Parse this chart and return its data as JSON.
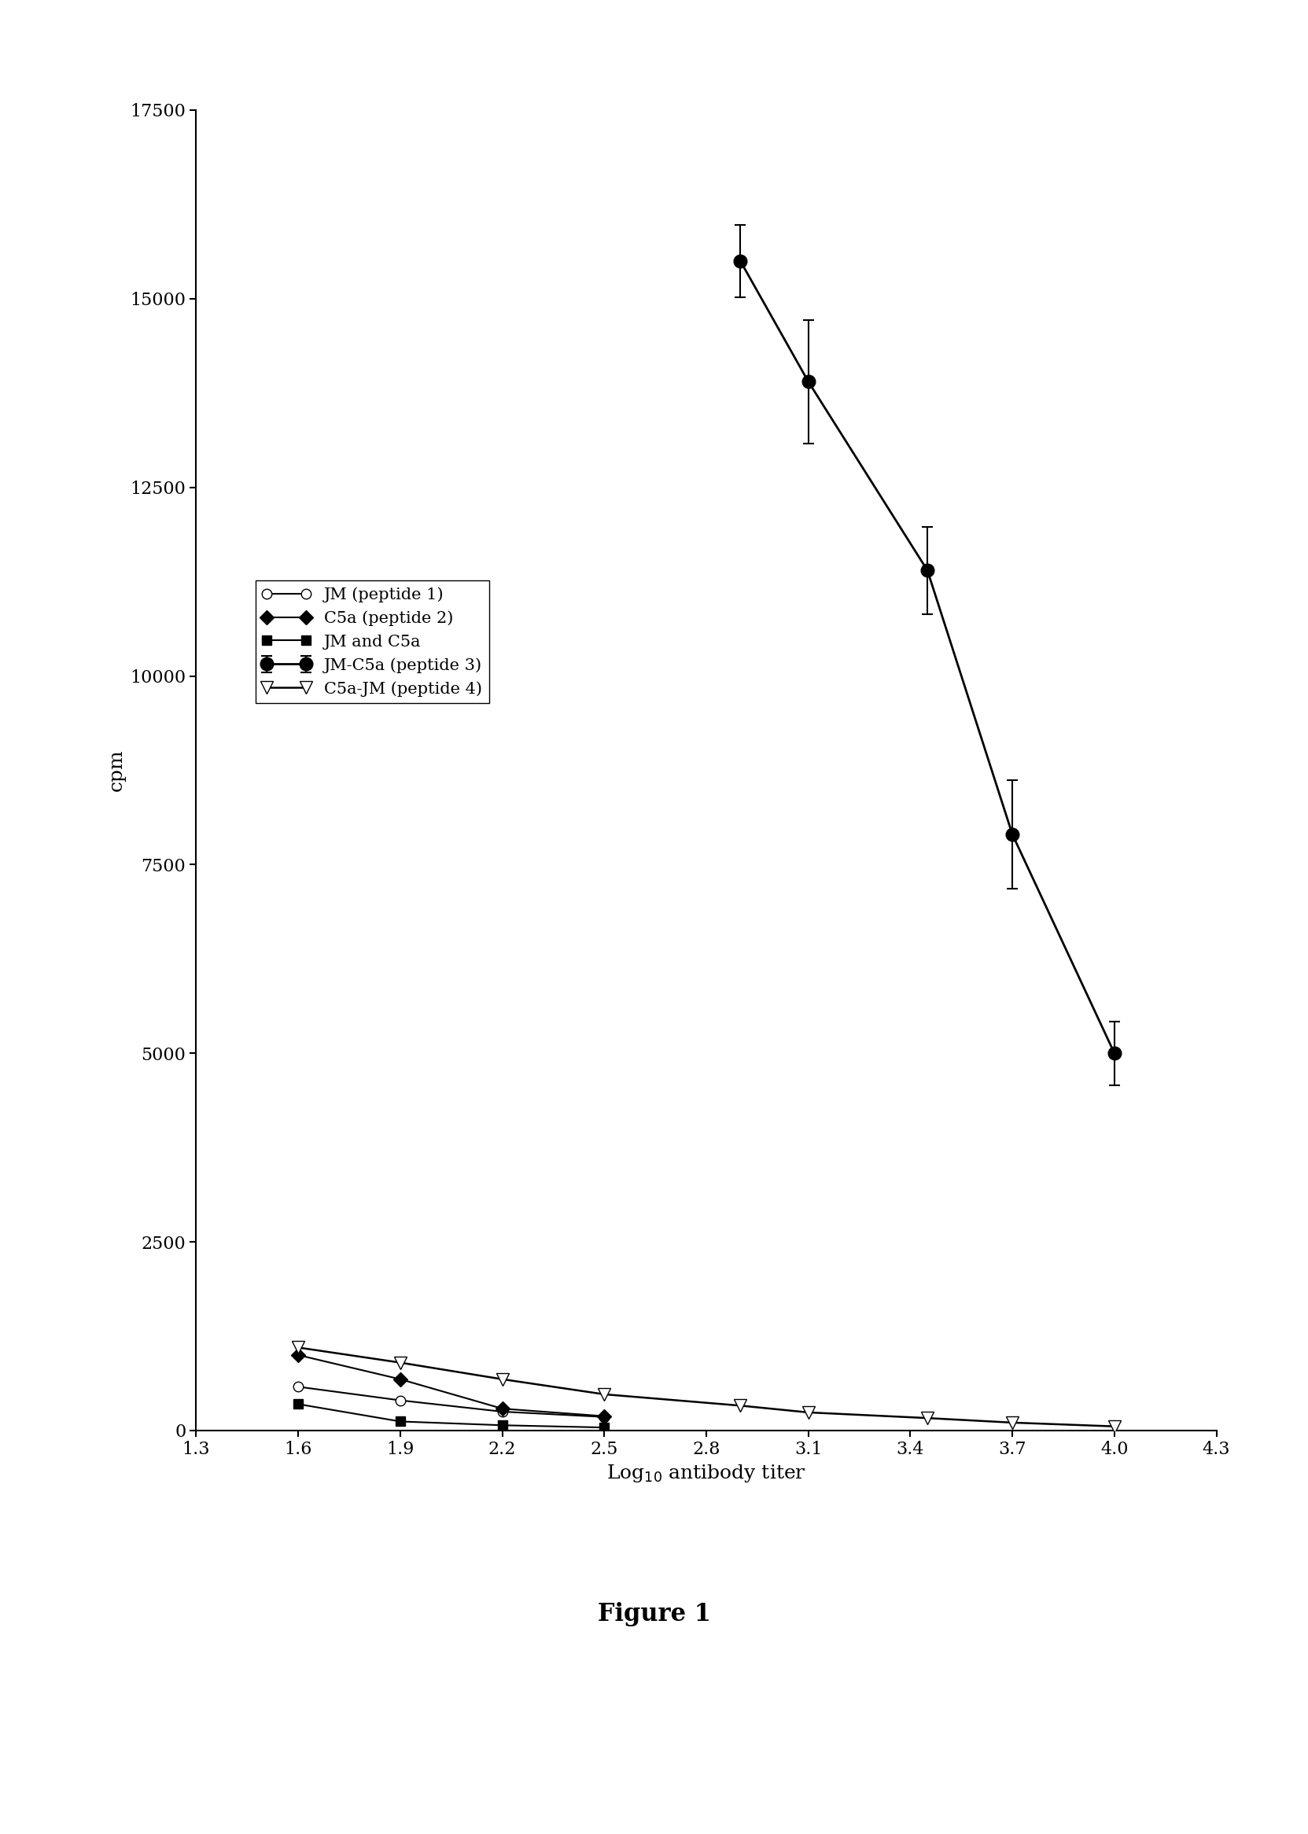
{
  "series": [
    {
      "label": "JM (peptide 1)",
      "x": [
        1.6,
        1.9,
        2.2,
        2.5
      ],
      "y": [
        580,
        400,
        250,
        180
      ],
      "yerr": [
        0,
        0,
        0,
        0
      ],
      "marker": "o",
      "markerfacecolor": "white",
      "markeredgecolor": "black",
      "color": "black",
      "linestyle": "-",
      "linewidth": 1.5,
      "markersize": 9
    },
    {
      "label": "C5a (peptide 2)",
      "x": [
        1.6,
        1.9,
        2.2,
        2.5
      ],
      "y": [
        1000,
        680,
        290,
        190
      ],
      "yerr": [
        0,
        0,
        0,
        0
      ],
      "marker": "D",
      "markerfacecolor": "black",
      "markeredgecolor": "black",
      "color": "black",
      "linestyle": "-",
      "linewidth": 1.5,
      "markersize": 9
    },
    {
      "label": "JM and C5a",
      "x": [
        1.6,
        1.9,
        2.2,
        2.5
      ],
      "y": [
        350,
        120,
        70,
        40
      ],
      "yerr": [
        0,
        0,
        0,
        0
      ],
      "marker": "s",
      "markerfacecolor": "black",
      "markeredgecolor": "black",
      "color": "black",
      "linestyle": "-",
      "linewidth": 1.5,
      "markersize": 8
    },
    {
      "label": "JM-C5a (peptide 3)",
      "x": [
        2.9,
        3.1,
        3.45,
        3.7,
        4.0
      ],
      "y": [
        15500,
        13900,
        11400,
        7900,
        5000
      ],
      "yerr": [
        480,
        820,
        580,
        720,
        420
      ],
      "marker": "o",
      "markerfacecolor": "black",
      "markeredgecolor": "black",
      "color": "black",
      "linestyle": "-",
      "linewidth": 2.0,
      "markersize": 12
    },
    {
      "label": "C5a-JM (peptide 4)",
      "x": [
        1.6,
        1.9,
        2.2,
        2.5,
        2.9,
        3.1,
        3.45,
        3.7,
        4.0
      ],
      "y": [
        1100,
        900,
        680,
        480,
        330,
        240,
        165,
        105,
        55
      ],
      "yerr": [
        0,
        0,
        0,
        0,
        0,
        0,
        0,
        0,
        0
      ],
      "marker": "v",
      "markerfacecolor": "white",
      "markeredgecolor": "black",
      "color": "black",
      "linestyle": "-",
      "linewidth": 1.8,
      "markersize": 12
    }
  ],
  "xlim": [
    1.3,
    4.3
  ],
  "ylim": [
    0,
    17500
  ],
  "xticks": [
    1.3,
    1.6,
    1.9,
    2.2,
    2.5,
    2.8,
    3.1,
    3.4,
    3.7,
    4.0,
    4.3
  ],
  "yticks": [
    0,
    2500,
    5000,
    7500,
    10000,
    12500,
    15000,
    17500
  ],
  "xlabel": "Log$_{10}$ antibody titer",
  "ylabel": "cpm",
  "figure_title": "Figure 1",
  "background_color": "#ffffff",
  "title_fontsize": 22,
  "axis_label_fontsize": 18,
  "tick_fontsize": 16,
  "legend_fontsize": 15
}
